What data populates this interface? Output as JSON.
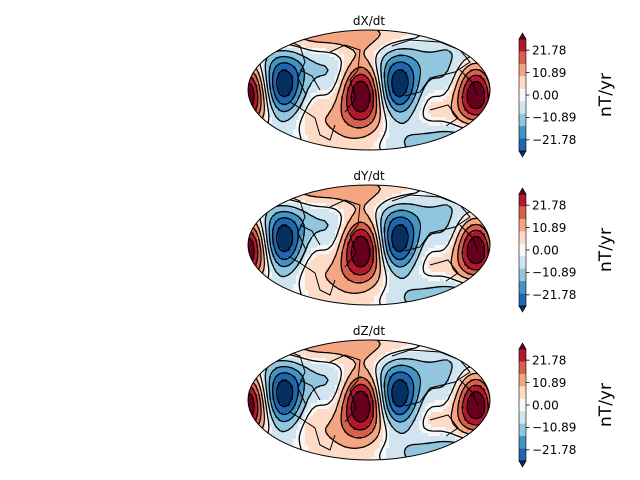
{
  "chart_data": [
    {
      "type": "heatmap",
      "projection": "mollweide",
      "title": "dX/dt",
      "colormap": "RdBu_r",
      "colorbar": {
        "label": "nT/yr",
        "ticks": [
          21.78,
          10.89,
          0.0,
          -10.89,
          -21.78
        ],
        "tick_labels": [
          "21.78",
          "10.89",
          "0.00",
          "−10.89",
          "−21.78"
        ],
        "range": [
          -27.2,
          27.2
        ],
        "extend": "both"
      },
      "contours": "solid positive, dashed negative",
      "coastlines": true
    },
    {
      "type": "heatmap",
      "projection": "mollweide",
      "title": "dY/dt",
      "colormap": "RdBu_r",
      "colorbar": {
        "label": "nT/yr",
        "ticks": [
          21.78,
          10.89,
          0.0,
          -10.89,
          -21.78
        ],
        "tick_labels": [
          "21.78",
          "10.89",
          "0.00",
          "−10.89",
          "−21.78"
        ],
        "range": [
          -27.2,
          27.2
        ],
        "extend": "both"
      },
      "contours": "solid positive, dashed negative",
      "coastlines": true
    },
    {
      "type": "heatmap",
      "projection": "mollweide",
      "title": "dZ/dt",
      "colormap": "RdBu_r",
      "colorbar": {
        "label": "nT/yr",
        "ticks": [
          21.78,
          10.89,
          0.0,
          -10.89,
          -21.78
        ],
        "tick_labels": [
          "21.78",
          "10.89",
          "0.00",
          "−10.89",
          "−21.78"
        ],
        "range": [
          -27.2,
          27.2
        ],
        "extend": "both"
      },
      "contours": "solid positive, dashed negative",
      "coastlines": true
    }
  ],
  "colors": {
    "cmap": [
      "#053061",
      "#2166ac",
      "#4393c3",
      "#92c5de",
      "#d1e5f0",
      "#f7f7f7",
      "#fddbc7",
      "#f4a582",
      "#d6604d",
      "#b2182b",
      "#67001f"
    ]
  }
}
